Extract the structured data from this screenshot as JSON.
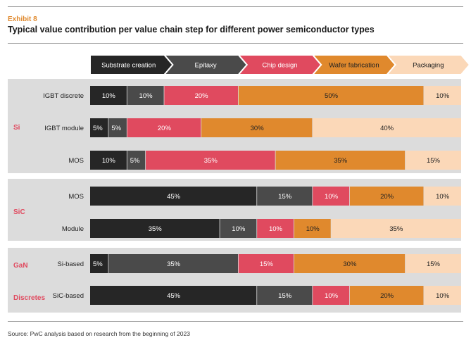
{
  "header": {
    "exhibit": "Exhibit  8",
    "title": "Typical value contribution per value chain step for different power semiconductor types"
  },
  "footer": {
    "source": "Source: PwC analysis based on research from the beginning of 2023"
  },
  "colors": {
    "group_label": "#e04a5f",
    "band": "#dcdcdc"
  },
  "chart_data": {
    "type": "bar",
    "orientation": "horizontal",
    "stacked": true,
    "title": "Typical value contribution per value chain step for different power semiconductor types",
    "steps": [
      {
        "name": "Substrate creation",
        "color": "#262626",
        "text_color": "#ffffff"
      },
      {
        "name": "Epitaxy",
        "color": "#4a4a4a",
        "text_color": "#ffffff"
      },
      {
        "name": "Chip design",
        "color": "#e04a5f",
        "text_color": "#ffffff"
      },
      {
        "name": "Wafer fabrication",
        "color": "#e0892d",
        "text_color": "#222222"
      },
      {
        "name": "Packaging",
        "color": "#fbd8b8",
        "text_color": "#222222"
      }
    ],
    "groups": [
      {
        "name": "Si",
        "label_lines": [
          "Si"
        ],
        "rows": [
          {
            "label": "IGBT discrete",
            "values": [
              10,
              10,
              20,
              50,
              10
            ]
          },
          {
            "label": "IGBT module",
            "values": [
              5,
              5,
              20,
              30,
              40
            ]
          },
          {
            "label": "MOS",
            "values": [
              10,
              5,
              35,
              35,
              15
            ]
          }
        ]
      },
      {
        "name": "SiC",
        "label_lines": [
          "SiC"
        ],
        "rows": [
          {
            "label": "MOS",
            "values": [
              45,
              15,
              10,
              20,
              10
            ]
          },
          {
            "label": "Module",
            "values": [
              35,
              10,
              10,
              10,
              35
            ]
          }
        ]
      },
      {
        "name": "GaN Discretes",
        "label_lines": [
          "GaN",
          "Discretes"
        ],
        "rows": [
          {
            "label": "Si-based",
            "values": [
              5,
              35,
              15,
              30,
              15
            ]
          },
          {
            "label": "SiC-based",
            "values": [
              45,
              15,
              10,
              20,
              10
            ]
          }
        ]
      }
    ],
    "value_suffix": "%",
    "xlim": [
      0,
      100
    ]
  }
}
